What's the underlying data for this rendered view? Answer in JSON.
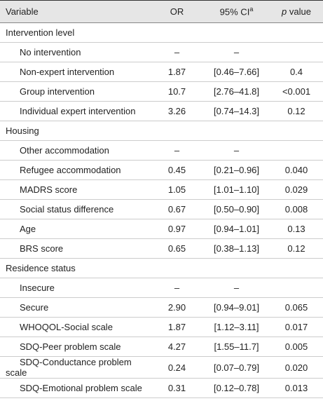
{
  "table": {
    "header": {
      "variable": "Variable",
      "or": "OR",
      "ci": {
        "text": "95% CI",
        "sup": "a"
      },
      "p": {
        "italic": "p",
        "text": "value"
      }
    },
    "sections": [
      {
        "title": "Intervention level",
        "rows": [
          {
            "label": "No intervention",
            "or": "–",
            "ci": "–"
          },
          {
            "label": "Non-expert intervention",
            "or": "1.87",
            "ci": "[0.46–7.66]",
            "p": "0.4"
          },
          {
            "label": "Group intervention",
            "or": "10.7",
            "ci": "[2.76–41.8]",
            "p": "<0.001"
          },
          {
            "label": "Individual expert intervention",
            "or": "3.26",
            "ci": "[0.74–14.3]",
            "p": "0.12"
          }
        ]
      },
      {
        "title": "Housing",
        "rows": [
          {
            "label": "Other accommodation",
            "or": "–",
            "ci": "–"
          },
          {
            "label": "Refugee accommodation",
            "or": "0.45",
            "ci": "[0.21–0.96]",
            "p": "0.040"
          },
          {
            "label": "MADRS score",
            "or": "1.05",
            "ci": "[1.01–1.10]",
            "p": "0.029"
          },
          {
            "label": "Social status difference",
            "or": "0.67",
            "ci": "[0.50–0.90]",
            "p": "0.008"
          },
          {
            "label": "Age",
            "or": "0.97",
            "ci": "[0.94–1.01]",
            "p": "0.13"
          },
          {
            "label": "BRS score",
            "or": "0.65",
            "ci": "[0.38–1.13]",
            "p": "0.12"
          }
        ]
      },
      {
        "title": "Residence status",
        "rows": [
          {
            "label": "Insecure",
            "or": "–",
            "ci": "–"
          },
          {
            "label": "Secure",
            "or": "2.90",
            "ci": "[0.94–9.01]",
            "p": "0.065"
          },
          {
            "label": "WHOQOL-Social scale",
            "or": "1.87",
            "ci": "[1.12–3.11]",
            "p": "0.017"
          },
          {
            "label": "SDQ-Peer problem scale",
            "or": "4.27",
            "ci": "[1.55–11.7]",
            "p": "0.005"
          },
          {
            "label": "SDQ-Conductance problem scale",
            "or": "0.24",
            "ci": "[0.07–0.79]",
            "p": "0.020"
          },
          {
            "label": "SDQ-Emotional problem scale",
            "or": "0.31",
            "ci": "[0.12–0.78]",
            "p": "0.013"
          }
        ]
      }
    ]
  }
}
